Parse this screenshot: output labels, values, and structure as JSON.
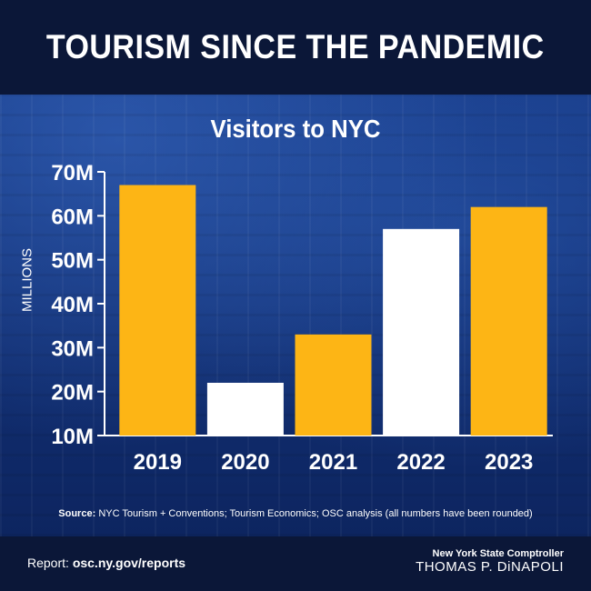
{
  "header": {
    "title": "TOURISM SINCE THE PANDEMIC"
  },
  "chart_data": {
    "type": "bar",
    "title": "Visitors to NYC",
    "ylabel": "MILLIONS",
    "xlabel": "",
    "categories": [
      "2019",
      "2020",
      "2021",
      "2022",
      "2023"
    ],
    "values": [
      67,
      22,
      33,
      57,
      62
    ],
    "bar_colors": [
      "#fdb515",
      "#ffffff",
      "#fdb515",
      "#ffffff",
      "#fdb515"
    ],
    "ylim": [
      10,
      70
    ],
    "yticks": [
      10,
      20,
      30,
      40,
      50,
      60,
      70
    ],
    "ytick_labels": [
      "10M",
      "20M",
      "30M",
      "40M",
      "50M",
      "60M",
      "70M"
    ],
    "grid": false
  },
  "source": {
    "label": "Source:",
    "text": "NYC Tourism + Conventions; Tourism Economics; OSC analysis (all numbers have been rounded)"
  },
  "footer": {
    "report_label": "Report:",
    "report_url": "osc.ny.gov/reports",
    "org_line": "New York State Comptroller",
    "name_line": "THOMAS P. DiNAPOLI"
  },
  "colors": {
    "accent": "#fdb515",
    "navy": "#0b1738",
    "white": "#ffffff"
  }
}
